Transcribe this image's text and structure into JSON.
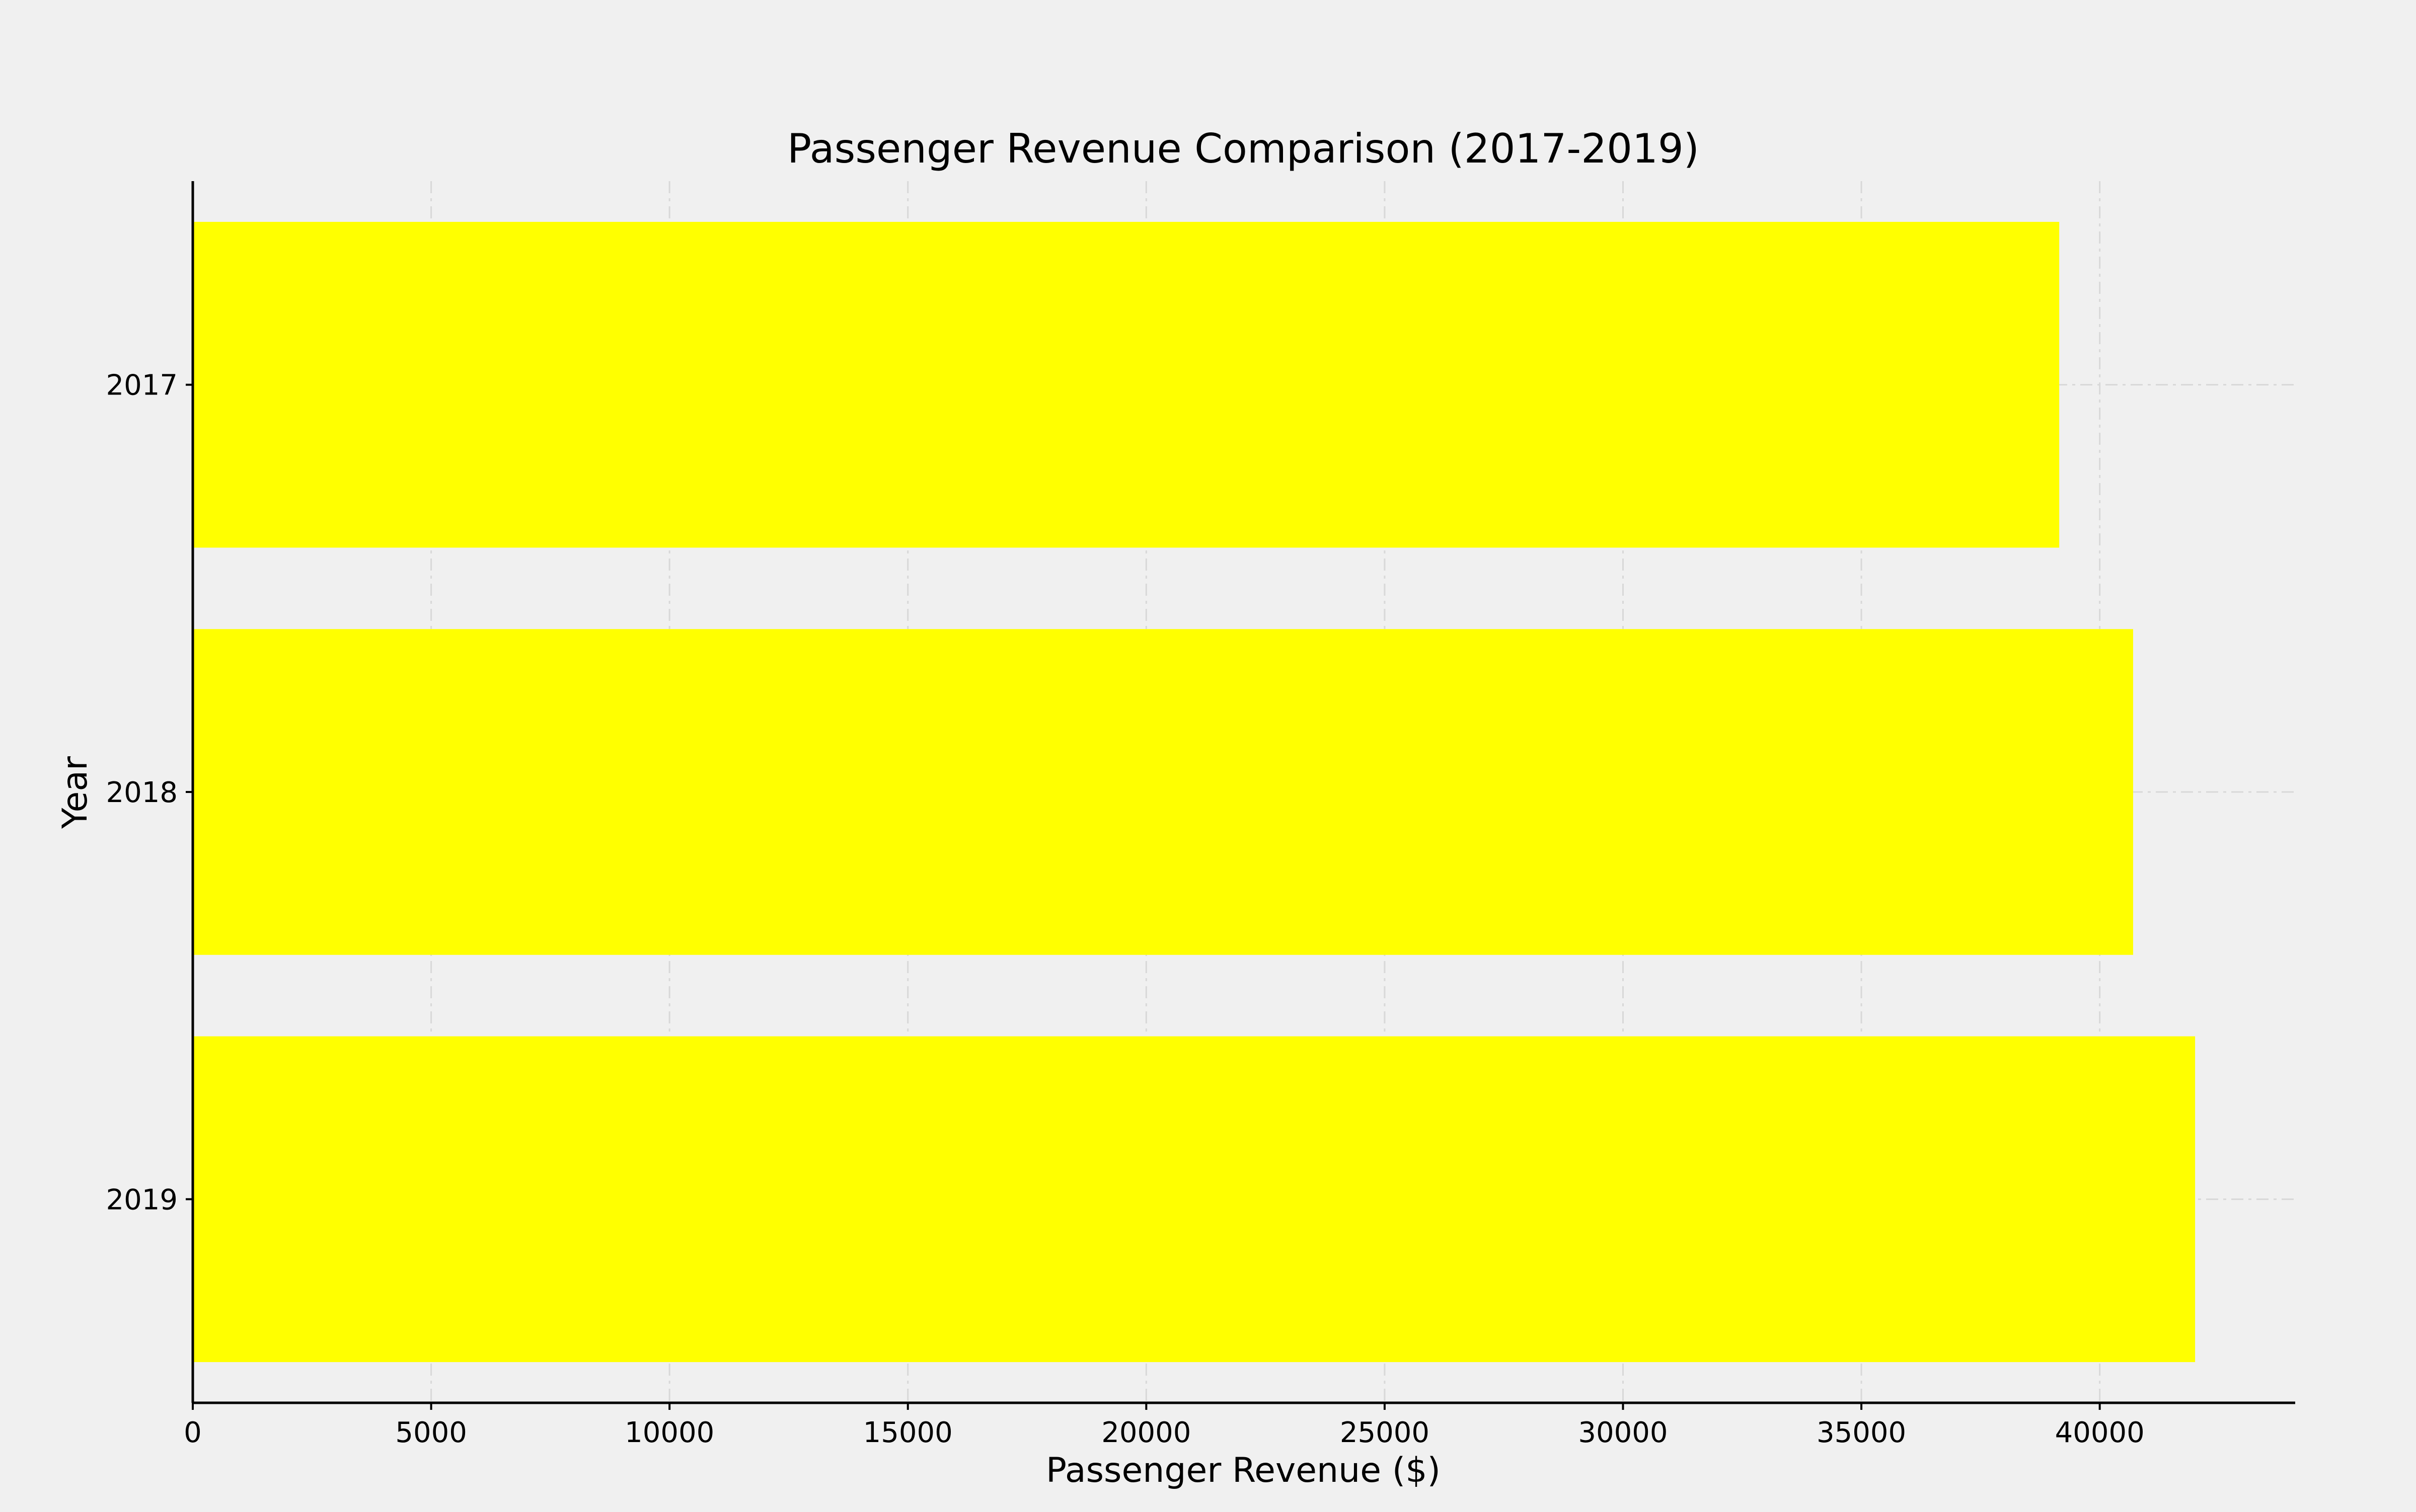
{
  "chart_data": {
    "type": "bar",
    "orientation": "horizontal",
    "title": "Passenger Revenue Comparison (2017-2019)",
    "xlabel": "Passenger Revenue ($)",
    "ylabel": "Year",
    "categories": [
      "2017",
      "2018",
      "2019"
    ],
    "values": [
      39150,
      40700,
      42000
    ],
    "xlim": [
      0,
      44100
    ],
    "xticks": [
      0,
      5000,
      10000,
      15000,
      20000,
      25000,
      30000,
      35000,
      40000
    ],
    "grid": true,
    "legend": false,
    "colors": {
      "bar": "#ffff00",
      "background": "#f0f0f0",
      "grid": "#d8d8d8",
      "axis": "#000000"
    }
  }
}
